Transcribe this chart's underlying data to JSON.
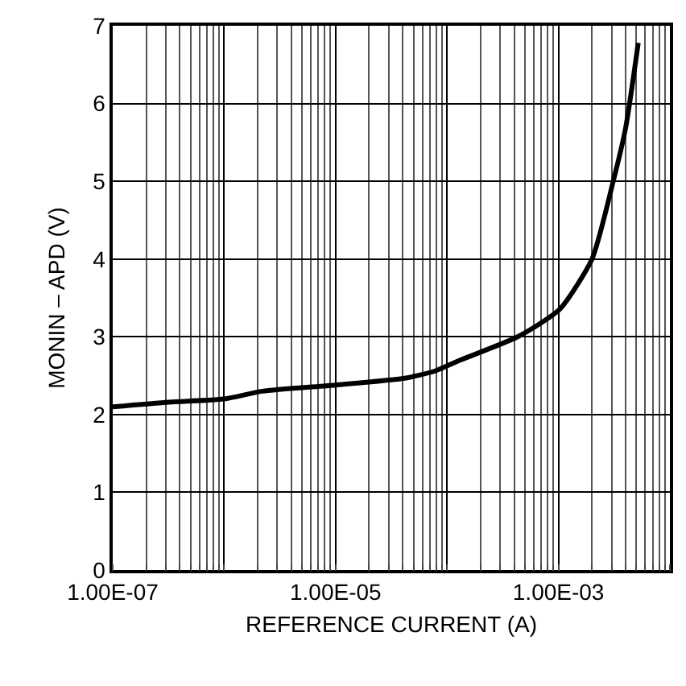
{
  "chart_data": {
    "type": "line",
    "xlabel": "REFERENCE CURRENT (A)",
    "ylabel": "MONIN – APD (V)",
    "x": [
      1e-07,
      3.2e-07,
      1e-06,
      2.2e-06,
      1e-05,
      4.3e-05,
      7.8e-05,
      0.000126,
      0.00043,
      0.00102,
      0.002,
      0.0031,
      0.004,
      0.0052
    ],
    "series": [
      {
        "color": "#000000",
        "values": [
          2.1,
          2.16,
          2.2,
          2.3,
          2.38,
          2.47,
          2.56,
          2.69,
          3.0,
          3.35,
          4.0,
          5.0,
          5.68,
          6.78
        ]
      }
    ],
    "log": "x",
    "grid": true,
    "marker": "none",
    "line_style": "solid",
    "xlim": [
      1e-07,
      0.01
    ],
    "xticks": [
      {
        "value": 1e-07,
        "label": "1.00E-07"
      },
      {
        "value": 1e-06,
        "label": null
      },
      {
        "value": 1e-05,
        "label": "1.00E-05"
      },
      {
        "value": 0.0001,
        "label": null
      },
      {
        "value": 0.001,
        "label": "1.00E-03"
      },
      {
        "value": 0.01,
        "label": null
      }
    ],
    "ylim": [
      0,
      7
    ],
    "yticks": [
      0,
      1,
      2,
      3,
      4,
      5,
      6,
      7
    ]
  }
}
